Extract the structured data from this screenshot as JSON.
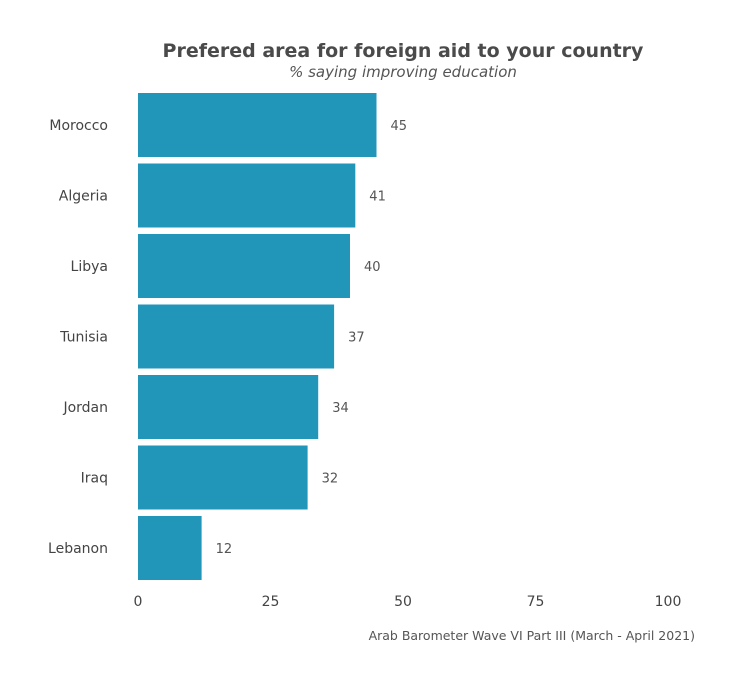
{
  "chart_data": {
    "type": "bar",
    "orientation": "horizontal",
    "title": "Prefered area for foreign aid to your country",
    "subtitle": "% saying improving education",
    "categories": [
      "Morocco",
      "Algeria",
      "Libya",
      "Tunisia",
      "Jordan",
      "Iraq",
      "Lebanon"
    ],
    "values": [
      45,
      41,
      40,
      37,
      34,
      32,
      12
    ],
    "data_labels": [
      "45",
      "41",
      "40",
      "37",
      "34",
      "32",
      "12"
    ],
    "xlim": [
      0,
      100
    ],
    "xticks": [
      0,
      25,
      50,
      75,
      100
    ],
    "xtick_labels": [
      "0",
      "25",
      "50",
      "75",
      "100"
    ],
    "xlabel": "",
    "ylabel": "",
    "grid": false,
    "legend": "none",
    "bar_color": "#2196b8",
    "caption": "Arab Barometer Wave VI Part III (March - April 2021)"
  }
}
